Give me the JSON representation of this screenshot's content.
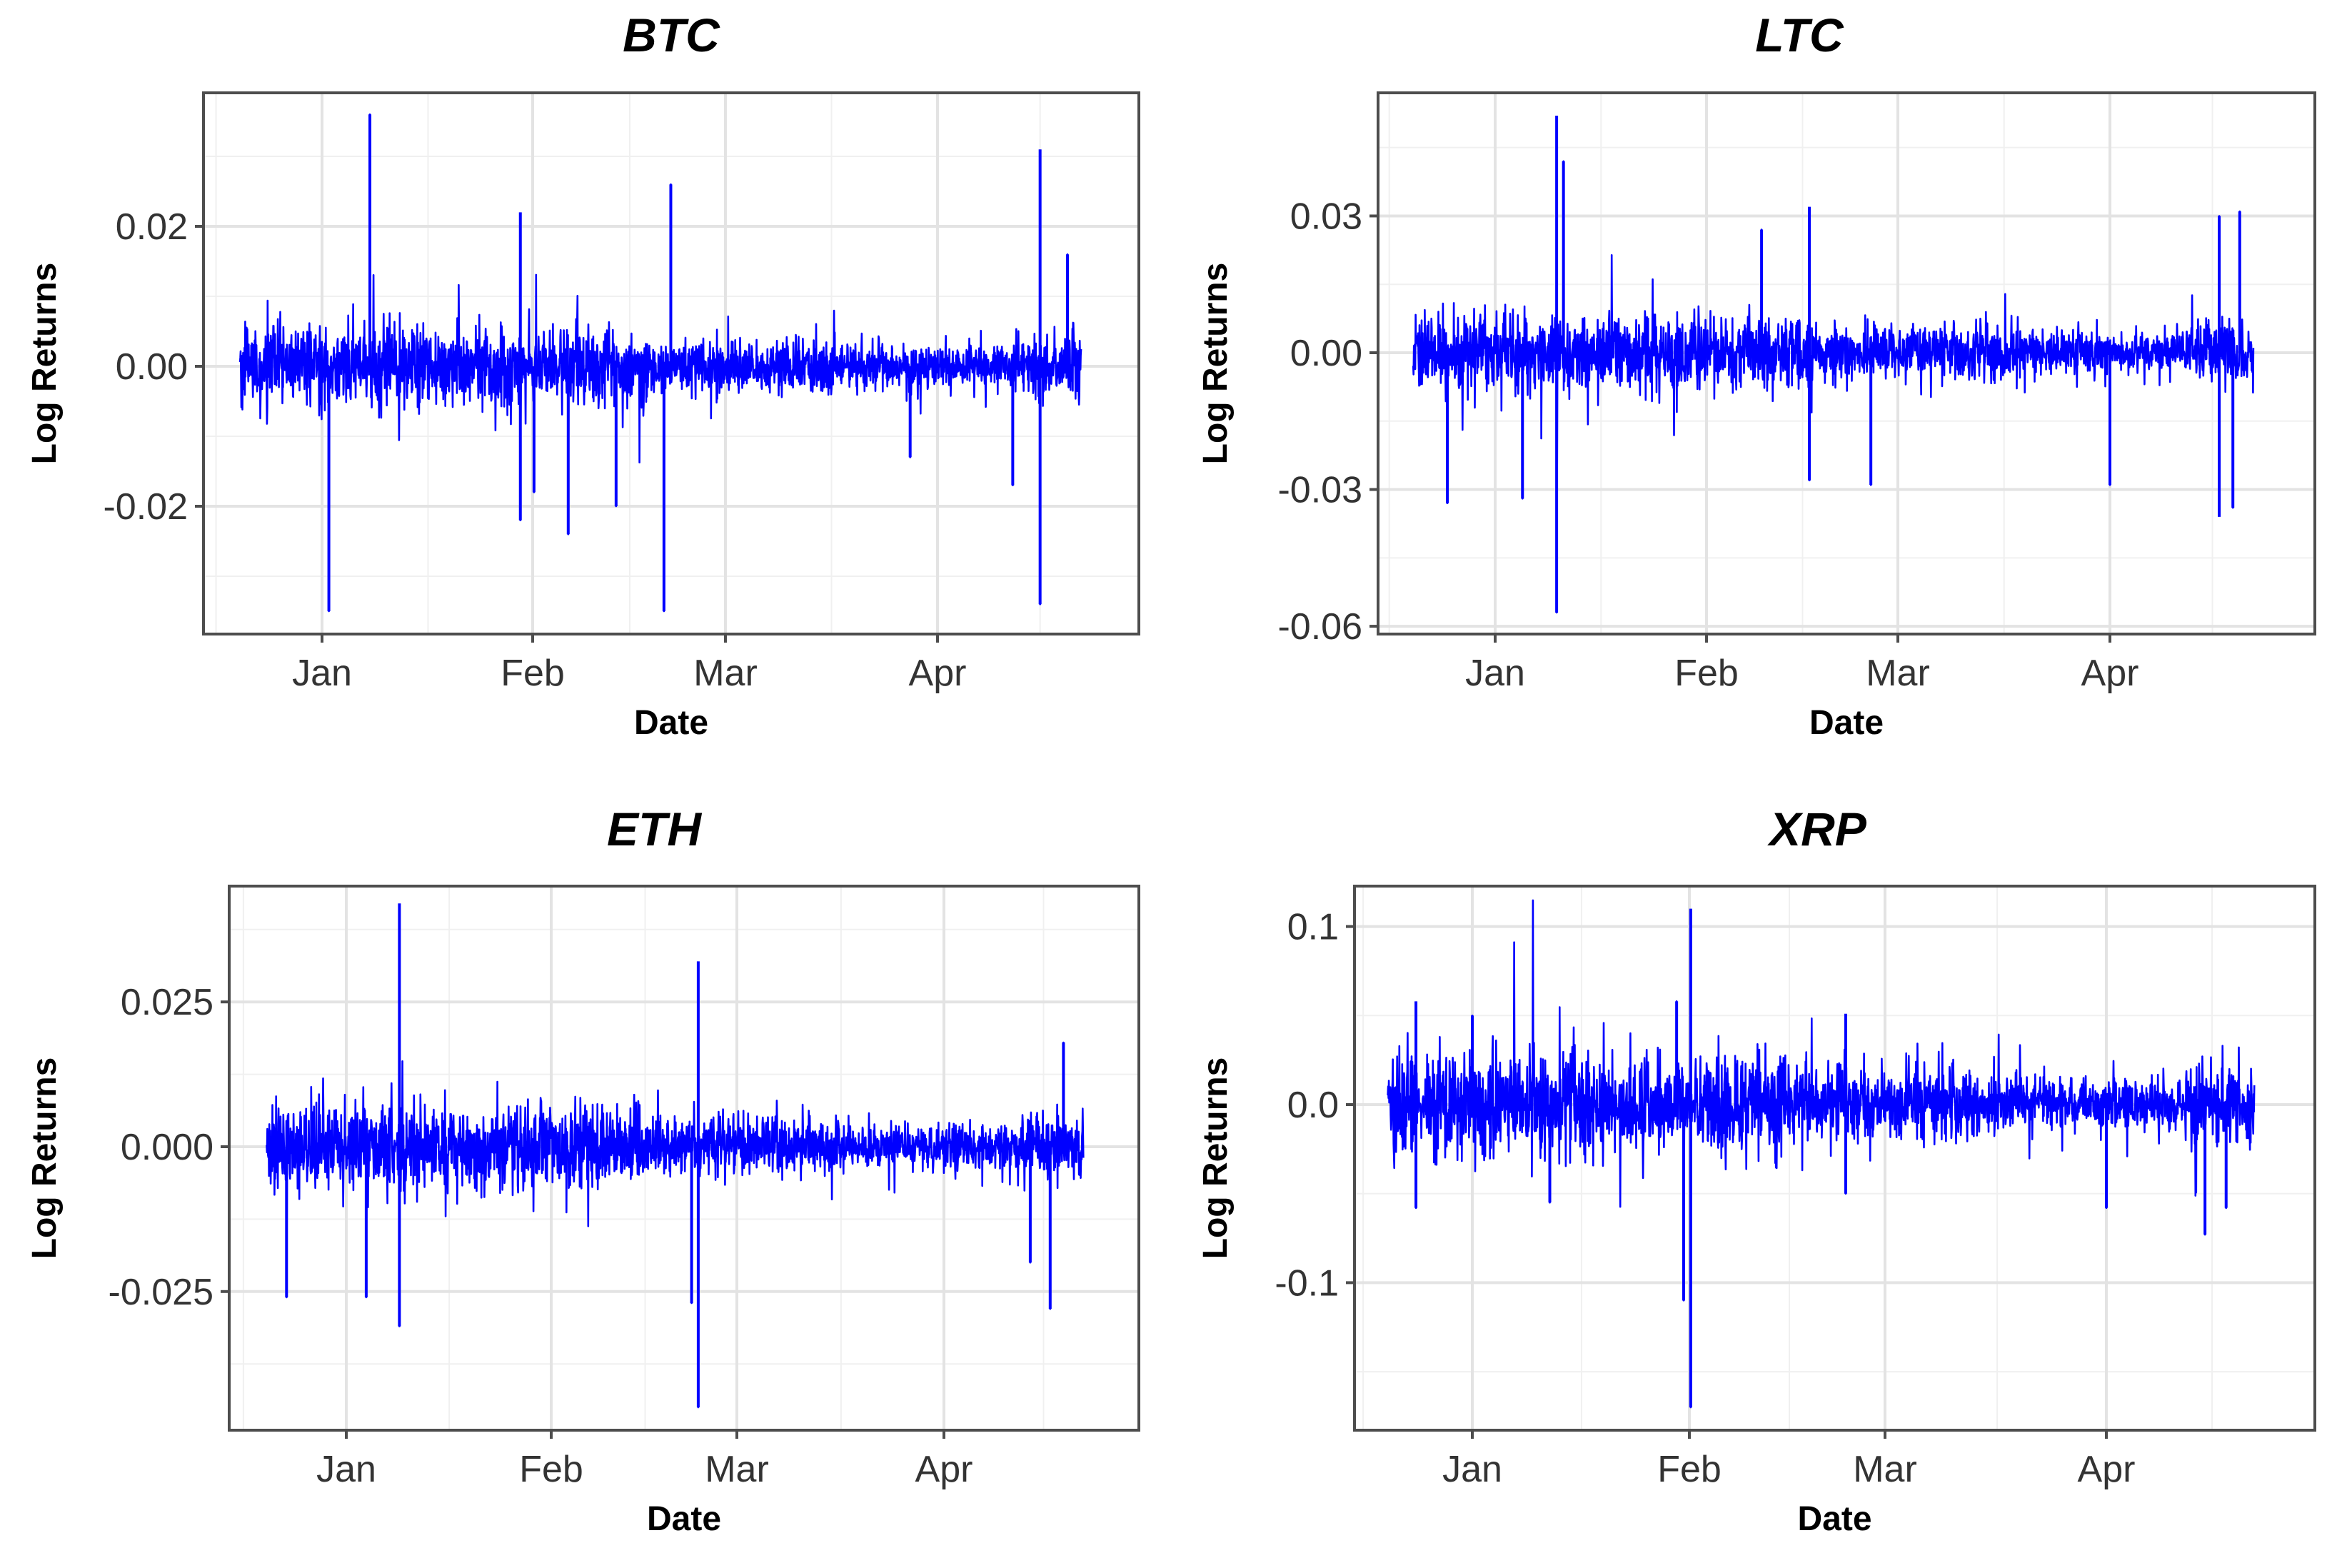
{
  "colors": {
    "series": "#0000ff",
    "grid": "#e3e3e3",
    "border": "#4d4d4d"
  },
  "chart_data": [
    {
      "type": "line",
      "title": "BTC",
      "xlabel": "Date",
      "ylabel": "Log Returns",
      "x_ticks": [
        "Jan",
        "Feb",
        "Mar",
        "Apr"
      ],
      "y_ticks": [
        "0.02",
        "0.00",
        "-0.02"
      ],
      "y_tick_values": [
        0.02,
        0.0,
        -0.02
      ],
      "ylim": [
        -0.037,
        0.038
      ],
      "x_range": [
        "2017-12-20",
        "2018-04-22"
      ],
      "grid": true,
      "spikes": [
        {
          "x": "2018-01-02",
          "y": -0.035
        },
        {
          "x": "2018-01-08",
          "y": 0.036
        },
        {
          "x": "2018-01-30",
          "y": 0.022
        },
        {
          "x": "2018-01-30",
          "y": -0.022
        },
        {
          "x": "2018-02-01",
          "y": -0.018
        },
        {
          "x": "2018-02-06",
          "y": -0.024
        },
        {
          "x": "2018-02-21",
          "y": 0.026
        },
        {
          "x": "2018-02-20",
          "y": -0.035
        },
        {
          "x": "2018-02-13",
          "y": -0.02
        },
        {
          "x": "2018-03-28",
          "y": -0.013
        },
        {
          "x": "2018-04-16",
          "y": 0.031
        },
        {
          "x": "2018-04-16",
          "y": -0.034
        },
        {
          "x": "2018-04-12",
          "y": -0.017
        },
        {
          "x": "2018-04-20",
          "y": 0.016
        }
      ]
    },
    {
      "type": "line",
      "title": "LTC",
      "xlabel": "Date",
      "ylabel": "Log Returns",
      "x_ticks": [
        "Jan",
        "Feb",
        "Mar",
        "Apr"
      ],
      "y_ticks": [
        "0.03",
        "0.00",
        "-0.03",
        "-0.06"
      ],
      "y_tick_values": [
        0.03,
        0.0,
        -0.03,
        -0.06
      ],
      "ylim": [
        -0.061,
        0.057
      ],
      "x_range": [
        "2017-12-20",
        "2018-04-22"
      ],
      "grid": true,
      "spikes": [
        {
          "x": "2018-01-10",
          "y": 0.052
        },
        {
          "x": "2018-01-10",
          "y": -0.057
        },
        {
          "x": "2018-01-11",
          "y": 0.042
        },
        {
          "x": "2017-12-25",
          "y": -0.033
        },
        {
          "x": "2018-01-05",
          "y": -0.032
        },
        {
          "x": "2018-02-09",
          "y": 0.027
        },
        {
          "x": "2018-02-16",
          "y": 0.032
        },
        {
          "x": "2018-02-16",
          "y": -0.028
        },
        {
          "x": "2018-02-25",
          "y": -0.029
        },
        {
          "x": "2018-04-01",
          "y": -0.029
        },
        {
          "x": "2018-04-17",
          "y": -0.036
        },
        {
          "x": "2018-04-17",
          "y": 0.03
        },
        {
          "x": "2018-04-20",
          "y": 0.031
        },
        {
          "x": "2018-04-19",
          "y": -0.034
        }
      ]
    },
    {
      "type": "line",
      "title": "ETH",
      "xlabel": "Date",
      "ylabel": "Log Returns",
      "x_ticks": [
        "Jan",
        "Feb",
        "Mar",
        "Apr"
      ],
      "y_ticks": [
        "0.025",
        "0.000",
        "-0.025"
      ],
      "y_tick_values": [
        0.025,
        0.0,
        -0.025
      ],
      "ylim": [
        -0.049,
        0.045
      ],
      "x_range": [
        "2017-12-20",
        "2018-04-22"
      ],
      "grid": true,
      "spikes": [
        {
          "x": "2017-12-23",
          "y": -0.026
        },
        {
          "x": "2018-01-04",
          "y": -0.026
        },
        {
          "x": "2018-01-09",
          "y": 0.042
        },
        {
          "x": "2018-01-09",
          "y": -0.031
        },
        {
          "x": "2018-02-23",
          "y": 0.032
        },
        {
          "x": "2018-02-23",
          "y": -0.045
        },
        {
          "x": "2018-02-22",
          "y": -0.027
        },
        {
          "x": "2018-04-14",
          "y": -0.02
        },
        {
          "x": "2018-04-17",
          "y": -0.028
        },
        {
          "x": "2018-04-19",
          "y": 0.018
        }
      ]
    },
    {
      "type": "line",
      "title": "XRP",
      "xlabel": "Date",
      "ylabel": "Log Returns",
      "x_ticks": [
        "Jan",
        "Feb",
        "Mar",
        "Apr"
      ],
      "y_ticks": [
        "0.1",
        "0.0",
        "-0.1"
      ],
      "y_tick_values": [
        0.1,
        0.0,
        -0.1
      ],
      "ylim": [
        -0.18,
        0.12
      ],
      "x_range": [
        "2017-12-20",
        "2018-04-22"
      ],
      "grid": true,
      "spikes": [
        {
          "x": "2017-12-24",
          "y": 0.058
        },
        {
          "x": "2017-12-24",
          "y": -0.058
        },
        {
          "x": "2018-01-01",
          "y": 0.05
        },
        {
          "x": "2018-01-12",
          "y": -0.055
        },
        {
          "x": "2018-02-01",
          "y": 0.11
        },
        {
          "x": "2018-02-01",
          "y": -0.17
        },
        {
          "x": "2018-01-31",
          "y": -0.11
        },
        {
          "x": "2018-01-30",
          "y": 0.058
        },
        {
          "x": "2018-02-23",
          "y": 0.051
        },
        {
          "x": "2018-02-23",
          "y": -0.05
        },
        {
          "x": "2018-04-01",
          "y": -0.058
        },
        {
          "x": "2018-04-15",
          "y": -0.073
        },
        {
          "x": "2018-04-18",
          "y": -0.058
        }
      ]
    }
  ]
}
